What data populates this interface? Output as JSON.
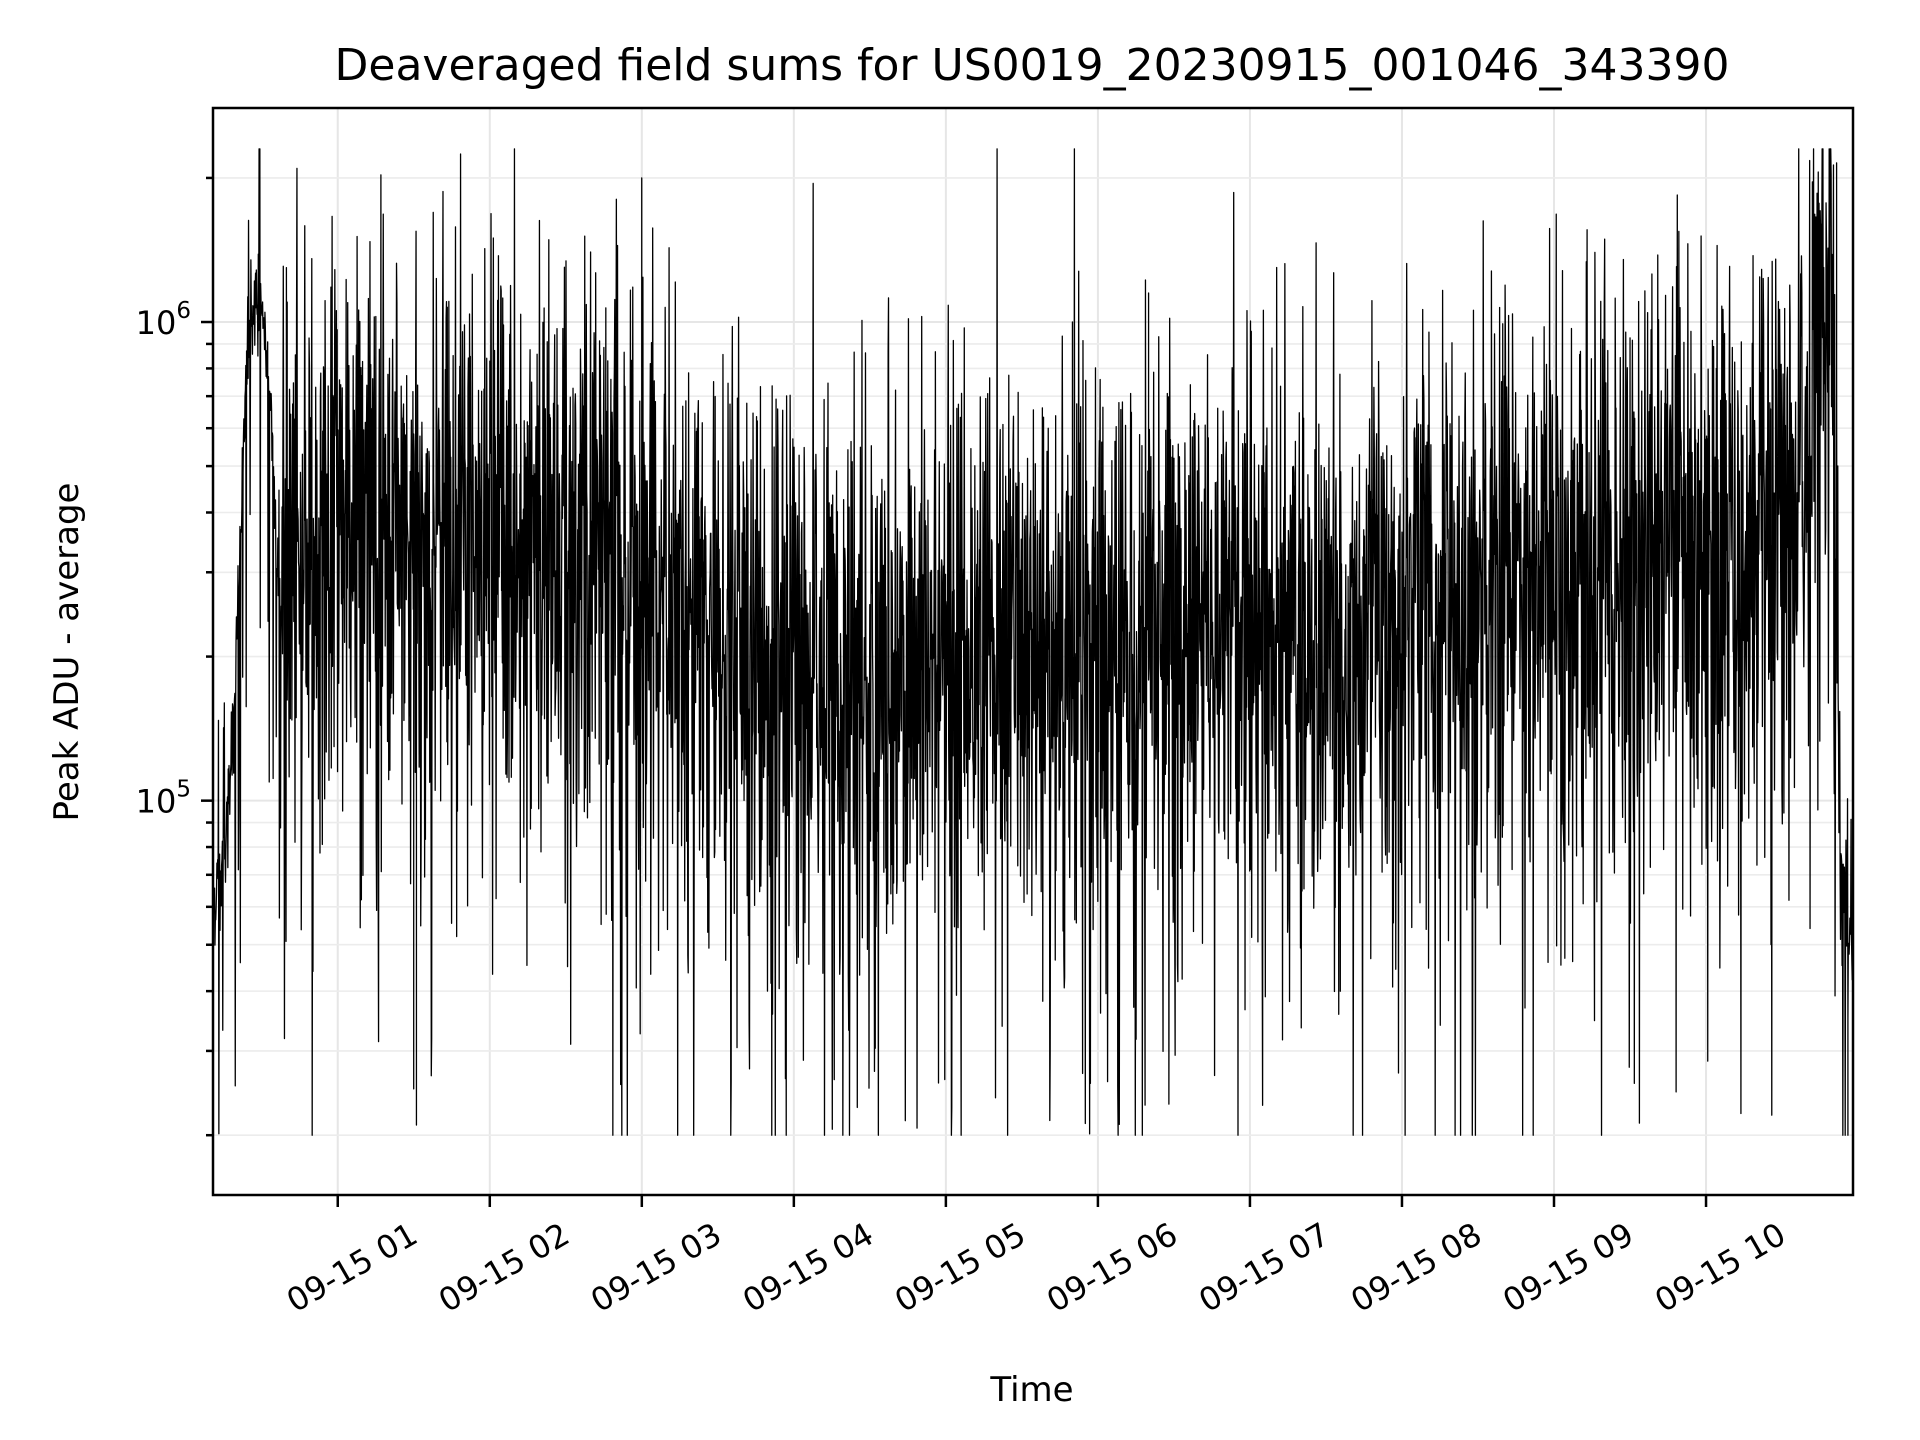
{
  "chart_data": {
    "type": "line",
    "title": "Deaveraged field sums for US0019_20230915_001046_343390",
    "xlabel": "Time",
    "ylabel": "Peak ADU - average",
    "yscale": "log",
    "xlim": [
      "2023-09-15 00:10:46",
      "2023-09-15 10:58:00"
    ],
    "ylim": [
      15000,
      2800000
    ],
    "grid": true,
    "x_ticks": [
      "09-15 01",
      "09-15 02",
      "09-15 03",
      "09-15 04",
      "09-15 05",
      "09-15 06",
      "09-15 07",
      "09-15 08",
      "09-15 09",
      "09-15 10"
    ],
    "x_tick_times": [
      "2023-09-15 01:00",
      "2023-09-15 02:00",
      "2023-09-15 03:00",
      "2023-09-15 04:00",
      "2023-09-15 05:00",
      "2023-09-15 06:00",
      "2023-09-15 07:00",
      "2023-09-15 08:00",
      "2023-09-15 09:00",
      "2023-09-15 10:00"
    ],
    "y_ticks": [
      {
        "value": 100000,
        "base": "10",
        "exp": "5"
      },
      {
        "value": 1000000,
        "base": "10",
        "exp": "6"
      }
    ],
    "series": [
      {
        "color": "#000000",
        "x": [
          "2023-09-15 00:10:46",
          "2023-09-15 00:13:00",
          "2023-09-15 00:16:00",
          "2023-09-15 00:19:00",
          "2023-09-15 00:22:00",
          "2023-09-15 00:24:00",
          "2023-09-15 00:26:00",
          "2023-09-15 00:28:00",
          "2023-09-15 00:30:00",
          "2023-09-15 00:32:00",
          "2023-09-15 00:34:00",
          "2023-09-15 00:36:00",
          "2023-09-15 00:38:00",
          "2023-09-15 00:40:00",
          "2023-09-15 00:43:00",
          "2023-09-15 00:46:00",
          "2023-09-15 00:49:00",
          "2023-09-15 00:55:00",
          "2023-09-15 01:00:00",
          "2023-09-15 01:20:00",
          "2023-09-15 01:35:00",
          "2023-09-15 01:50:00",
          "2023-09-15 02:20:00",
          "2023-09-15 02:40:00",
          "2023-09-15 03:00:00",
          "2023-09-15 03:30:00",
          "2023-09-15 04:00:00",
          "2023-09-15 04:30:00",
          "2023-09-15 05:00:00",
          "2023-09-15 05:30:00",
          "2023-09-15 05:50:00",
          "2023-09-15 06:00:00",
          "2023-09-15 06:30:00",
          "2023-09-15 07:00:00",
          "2023-09-15 07:30:00",
          "2023-09-15 08:00:00",
          "2023-09-15 08:30:00",
          "2023-09-15 09:00:00",
          "2023-09-15 09:30:00",
          "2023-09-15 10:00:00",
          "2023-09-15 10:30:00",
          "2023-09-15 10:40:00",
          "2023-09-15 10:45:00",
          "2023-09-15 10:47:00",
          "2023-09-15 10:49:00",
          "2023-09-15 10:51:00",
          "2023-09-15 10:53:00",
          "2023-09-15 10:55:00",
          "2023-09-15 10:58:00"
        ],
        "y": [
          60000,
          70000,
          85000,
          150000,
          400000,
          900000,
          1150000,
          1050000,
          1000000,
          850000,
          600000,
          300000,
          250000,
          300000,
          350000,
          350000,
          300000,
          320000,
          380000,
          400000,
          350000,
          380000,
          350000,
          300000,
          280000,
          200000,
          180000,
          170000,
          220000,
          200000,
          250000,
          220000,
          240000,
          230000,
          230000,
          250000,
          300000,
          320000,
          320000,
          330000,
          350000,
          500000,
          900000,
          1300000,
          1800000,
          400000,
          70000,
          55000,
          50000
        ],
        "noise": {
          "low_clip": 20000,
          "high_clip": 2300000,
          "description": "dense random fluctuations around the trend"
        },
        "spikes": [
          {
            "x": "2023-09-15 03:00:00",
            "y": 2000000
          },
          {
            "x": "2023-09-15 00:40:00",
            "y": 1100000
          },
          {
            "x": "2023-09-15 05:50:00",
            "y": 1000000
          },
          {
            "x": "2023-09-15 06:20:00",
            "y": 1150000
          },
          {
            "x": "2023-09-15 01:30:00",
            "y": 25000
          },
          {
            "x": "2023-09-15 01:31:00",
            "y": 21000
          },
          {
            "x": "2023-09-15 10:51:30",
            "y": 2150000
          },
          {
            "x": "2023-09-15 10:56:00",
            "y": 20000
          }
        ]
      }
    ]
  }
}
